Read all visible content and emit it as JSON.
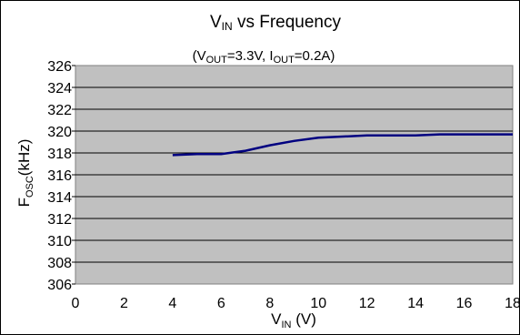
{
  "chart_data": {
    "type": "line",
    "title": {
      "main": "V",
      "main_sub": "IN",
      "main_rest": " vs Frequency"
    },
    "subtitle": {
      "p1": "(V",
      "p1_sub": "OUT",
      "p2": "=3.3V, I",
      "p2_sub": "OUT",
      "p3": "=0.2A)"
    },
    "xlabel": {
      "main": "V",
      "sub": "IN",
      "rest": " (V)"
    },
    "ylabel": {
      "main": "F",
      "sub": "OSC",
      "rest": "(kHz)"
    },
    "xlim": [
      0,
      18
    ],
    "ylim": [
      306,
      326
    ],
    "x_ticks": [
      0,
      2,
      4,
      6,
      8,
      10,
      12,
      14,
      16,
      18
    ],
    "y_ticks": [
      306,
      308,
      310,
      312,
      314,
      316,
      318,
      320,
      322,
      324,
      326
    ],
    "grid": true,
    "plot_background": "#c0c0c0",
    "series": [
      {
        "color": "#000080",
        "x": [
          4,
          5,
          6,
          7,
          8,
          9,
          10,
          11,
          12,
          13,
          14,
          15,
          16,
          17,
          18
        ],
        "y": [
          317.8,
          317.9,
          317.9,
          318.2,
          318.7,
          319.1,
          319.4,
          319.5,
          319.6,
          319.6,
          319.6,
          319.7,
          319.7,
          319.7,
          319.7
        ]
      }
    ]
  }
}
